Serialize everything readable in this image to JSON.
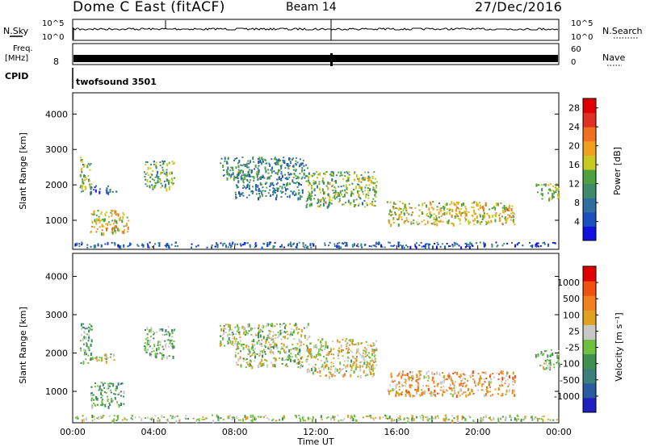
{
  "header": {
    "radar": "Dome C East (fitACF)",
    "beam": "Beam 14",
    "date": "27/Dec/2016"
  },
  "ancillary": {
    "nsky_label": "N.Sky",
    "nsearch_label": "N.Search",
    "noise_ticks": [
      "10^5",
      "10^0"
    ],
    "freq_label": "Freq.",
    "freq_unit": "[MHz]",
    "freq_ticks": [
      "8"
    ],
    "nave_label": "Nave",
    "nave_ticks": [
      "60",
      "0"
    ],
    "cpid_label": "CPID",
    "cpid_value": "twofsound 3501"
  },
  "chart_data": [
    {
      "type": "heatmap",
      "panel": "power",
      "ylabel": "Slant Range [km]",
      "xlabel": "",
      "ylim": [
        180,
        4600
      ],
      "xlim": [
        "00:00",
        "24:00"
      ],
      "yticks": [
        "1000",
        "2000",
        "3000",
        "4000"
      ],
      "colorbar": {
        "label": "Power [dB]",
        "ticks": [
          "4",
          "8",
          "12",
          "16",
          "20",
          "24",
          "28"
        ],
        "colors": [
          "#1010e0",
          "#1a4fc0",
          "#2e6fa0",
          "#3f8a6a",
          "#4fa040",
          "#c8c820",
          "#f0a020",
          "#f07020",
          "#e03020",
          "#e00000"
        ],
        "range": [
          0,
          30
        ]
      },
      "echo_regions": [
        {
          "t": [
            "00:20",
            "00:55"
          ],
          "range_km": [
            1750,
            2800
          ],
          "value": 14
        },
        {
          "t": [
            "00:50",
            "02:45"
          ],
          "range_km": [
            650,
            1300
          ],
          "value": 18
        },
        {
          "t": [
            "00:50",
            "02:10"
          ],
          "range_km": [
            1800,
            2000
          ],
          "value": 7
        },
        {
          "t": [
            "03:30",
            "05:00"
          ],
          "range_km": [
            1900,
            2700
          ],
          "value": 12
        },
        {
          "t": [
            "07:15",
            "11:40"
          ],
          "range_km": [
            2200,
            2800
          ],
          "value": 10
        },
        {
          "t": [
            "08:00",
            "11:20"
          ],
          "range_km": [
            1650,
            2250
          ],
          "value": 9
        },
        {
          "t": [
            "11:30",
            "15:00"
          ],
          "range_km": [
            1400,
            2400
          ],
          "value": 14
        },
        {
          "t": [
            "15:30",
            "21:50"
          ],
          "range_km": [
            900,
            1550
          ],
          "value": 17
        },
        {
          "t": [
            "22:50",
            "24:00"
          ],
          "range_km": [
            1600,
            2100
          ],
          "value": 14
        },
        {
          "t": [
            "00:00",
            "24:00"
          ],
          "range_km": [
            250,
            400
          ],
          "value": 6
        }
      ]
    },
    {
      "type": "heatmap",
      "panel": "velocity",
      "ylabel": "Slant Range [km]",
      "xlabel": "Time UT",
      "ylim": [
        180,
        4600
      ],
      "xlim": [
        "00:00",
        "24:00"
      ],
      "yticks": [
        "1000",
        "2000",
        "3000",
        "4000"
      ],
      "xticks": [
        "00:00",
        "04:00",
        "08:00",
        "12:00",
        "16:00",
        "20:00",
        "00:00"
      ],
      "colorbar": {
        "label": "Velocity [m s⁻¹]",
        "ticks": [
          "1000",
          "500",
          "100",
          "25",
          "-25",
          "-100",
          "-500",
          "-1000"
        ],
        "colors": [
          "#2020c0",
          "#2a5aa0",
          "#3d7f7a",
          "#3f8f50",
          "#70c040",
          "#c8c8c8",
          "#e0a020",
          "#f08020",
          "#f05010",
          "#e00000"
        ],
        "range": [
          -1200,
          1200
        ]
      },
      "echo_regions": [
        {
          "t": [
            "00:20",
            "00:55"
          ],
          "range_km": [
            1750,
            2800
          ],
          "value": -300
        },
        {
          "t": [
            "00:50",
            "02:30"
          ],
          "range_km": [
            600,
            1250
          ],
          "value": -300
        },
        {
          "t": [
            "00:50",
            "02:10"
          ],
          "range_km": [
            1800,
            2000
          ],
          "value": 0
        },
        {
          "t": [
            "03:30",
            "05:00"
          ],
          "range_km": [
            1900,
            2700
          ],
          "value": -200
        },
        {
          "t": [
            "07:15",
            "11:40"
          ],
          "range_km": [
            2200,
            2800
          ],
          "value": 0
        },
        {
          "t": [
            "08:00",
            "11:20"
          ],
          "range_km": [
            1650,
            2250
          ],
          "value": 0
        },
        {
          "t": [
            "11:30",
            "15:00"
          ],
          "range_km": [
            1400,
            2400
          ],
          "value": 150
        },
        {
          "t": [
            "15:30",
            "21:50"
          ],
          "range_km": [
            900,
            1550
          ],
          "value": 400
        },
        {
          "t": [
            "22:50",
            "24:00"
          ],
          "range_km": [
            1600,
            2100
          ],
          "value": -150
        },
        {
          "t": [
            "00:00",
            "24:00"
          ],
          "range_km": [
            250,
            400
          ],
          "value": 60
        }
      ]
    }
  ]
}
